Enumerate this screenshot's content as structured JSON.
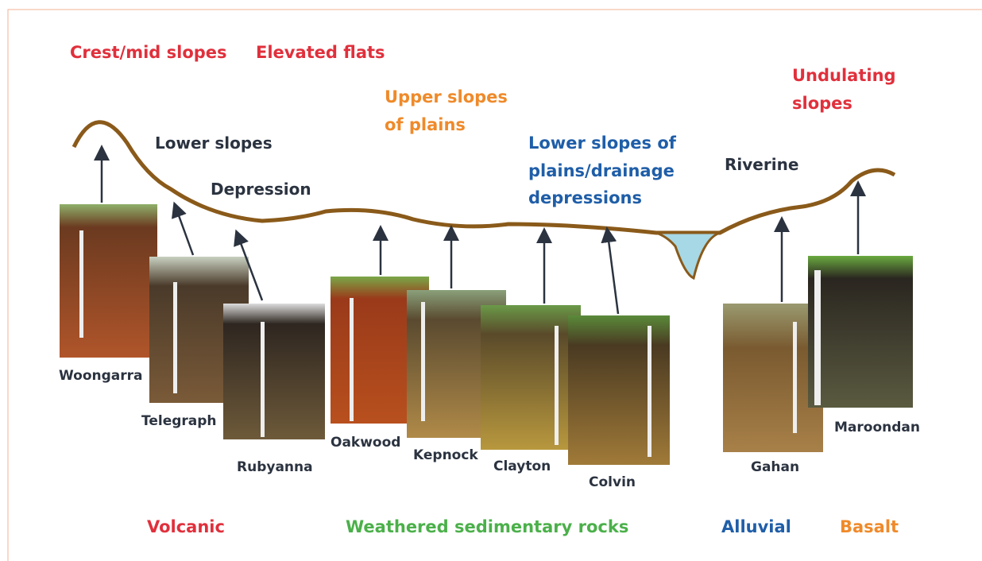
{
  "landforms": [
    {
      "lines": [
        "Crest/mid slopes"
      ]
    },
    {
      "lines": [
        "Elevated flats"
      ]
    },
    {
      "lines": [
        "Upper slopes",
        "of plains"
      ]
    },
    {
      "lines": [
        "Lower slopes"
      ]
    },
    {
      "lines": [
        "Depression"
      ]
    },
    {
      "lines": [
        "Lower slopes of",
        "plains/drainage",
        "depressions"
      ]
    },
    {
      "lines": [
        "Riverine"
      ]
    },
    {
      "lines": [
        "Undulating",
        "slopes"
      ]
    }
  ],
  "soils": [
    "Woongarra",
    "Telegraph",
    "Rubyanna",
    "Oakwood",
    "Kepnock",
    "Clayton",
    "Colvin",
    "Gahan",
    "Maroondan"
  ],
  "parent_materials": [
    "Volcanic",
    "Weathered sedimentary rocks",
    "Alluvial",
    "Basalt"
  ]
}
